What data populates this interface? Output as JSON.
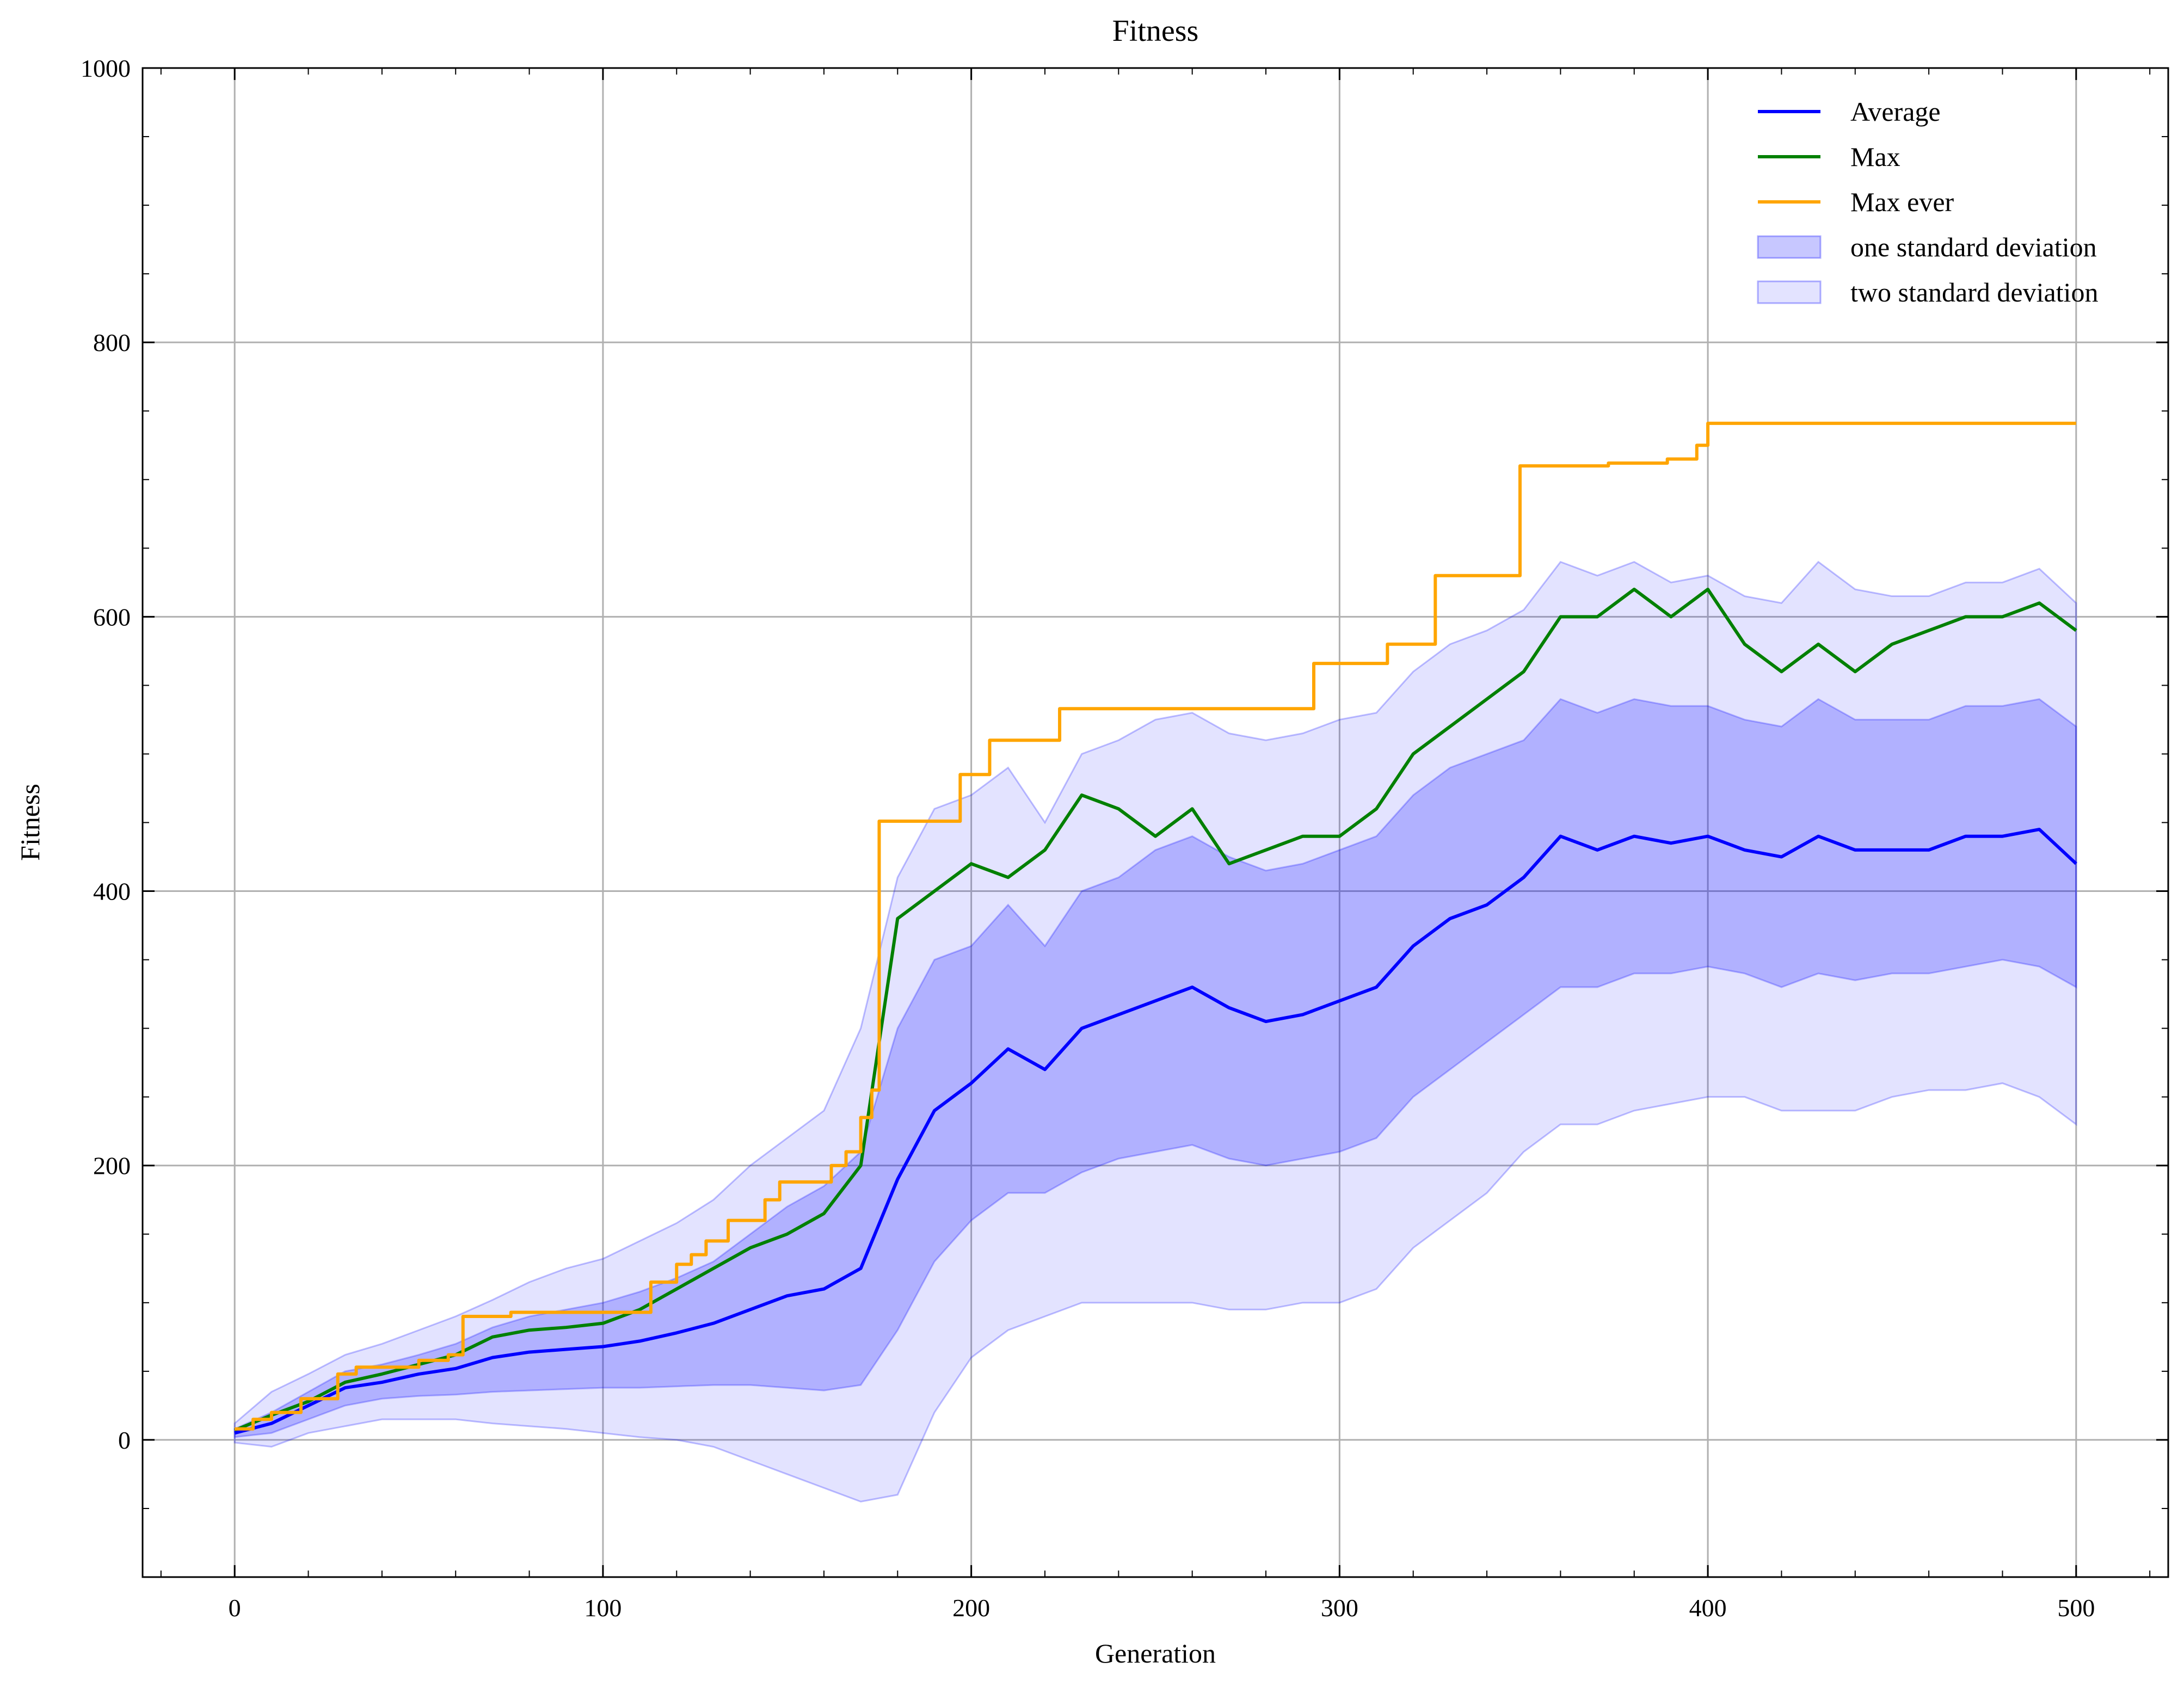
{
  "chart_data": {
    "type": "line",
    "title": "Fitness",
    "xlabel": "Generation",
    "ylabel": "Fitness",
    "xlim": [
      -25,
      525
    ],
    "ylim": [
      -100,
      1000
    ],
    "xticks": [
      0,
      100,
      200,
      300,
      400,
      500
    ],
    "yticks": [
      0,
      200,
      400,
      600,
      800,
      1000
    ],
    "grid": true,
    "legend": "top-right",
    "colors": {
      "average": "#0000ff",
      "max": "#008000",
      "max_ever": "#ffa500",
      "band_one": "#0000ff",
      "band_two": "#0000ff"
    },
    "series": [
      {
        "name": "Average",
        "kind": "line",
        "x": [
          0,
          10,
          20,
          30,
          40,
          50,
          60,
          70,
          80,
          90,
          100,
          110,
          120,
          130,
          140,
          150,
          160,
          170,
          180,
          190,
          200,
          210,
          220,
          230,
          240,
          250,
          260,
          270,
          280,
          290,
          300,
          310,
          320,
          330,
          340,
          350,
          360,
          370,
          380,
          390,
          400,
          410,
          420,
          430,
          440,
          450,
          460,
          470,
          480,
          490,
          500
        ],
        "y": [
          5,
          12,
          25,
          38,
          42,
          48,
          52,
          60,
          64,
          66,
          68,
          72,
          78,
          85,
          95,
          105,
          110,
          125,
          190,
          240,
          260,
          285,
          270,
          300,
          310,
          320,
          330,
          315,
          305,
          310,
          320,
          330,
          360,
          380,
          390,
          410,
          440,
          430,
          440,
          435,
          440,
          430,
          425,
          440,
          430,
          430,
          430,
          440,
          440,
          445,
          420
        ]
      },
      {
        "name": "Max",
        "kind": "line",
        "x": [
          0,
          10,
          20,
          30,
          40,
          50,
          60,
          70,
          80,
          90,
          100,
          110,
          120,
          130,
          140,
          150,
          160,
          170,
          180,
          190,
          200,
          210,
          220,
          230,
          240,
          250,
          260,
          270,
          280,
          290,
          300,
          310,
          320,
          330,
          340,
          350,
          360,
          370,
          380,
          390,
          400,
          410,
          420,
          430,
          440,
          450,
          460,
          470,
          480,
          490,
          500
        ],
        "y": [
          7,
          18,
          28,
          42,
          48,
          55,
          62,
          75,
          80,
          82,
          85,
          95,
          110,
          125,
          140,
          150,
          165,
          200,
          380,
          400,
          420,
          410,
          430,
          470,
          460,
          440,
          460,
          420,
          430,
          440,
          440,
          460,
          500,
          520,
          540,
          560,
          600,
          600,
          620,
          600,
          620,
          580,
          560,
          580,
          560,
          580,
          590,
          600,
          600,
          610,
          590
        ]
      },
      {
        "name": "Max ever",
        "kind": "step",
        "x": [
          0,
          5,
          10,
          18,
          28,
          33,
          50,
          58,
          62,
          75,
          113,
          120,
          124,
          128,
          134,
          144,
          148,
          162,
          166,
          170,
          173,
          175,
          197,
          205,
          224,
          293,
          313,
          326,
          349,
          373,
          389,
          397,
          400,
          500
        ],
        "y": [
          8,
          15,
          20,
          30,
          48,
          53,
          58,
          62,
          90,
          93,
          115,
          128,
          135,
          145,
          160,
          175,
          188,
          200,
          210,
          235,
          255,
          451,
          485,
          510,
          533,
          566,
          580,
          630,
          710,
          712,
          715,
          725,
          741,
          741
        ]
      },
      {
        "name": "one standard deviation",
        "kind": "band",
        "x": [
          0,
          10,
          20,
          30,
          40,
          50,
          60,
          70,
          80,
          90,
          100,
          110,
          120,
          130,
          140,
          150,
          160,
          170,
          180,
          190,
          200,
          210,
          220,
          230,
          240,
          250,
          260,
          270,
          280,
          290,
          300,
          310,
          320,
          330,
          340,
          350,
          360,
          370,
          380,
          390,
          400,
          410,
          420,
          430,
          440,
          450,
          460,
          470,
          480,
          490,
          500
        ],
        "lower": [
          2,
          5,
          15,
          25,
          30,
          32,
          33,
          35,
          36,
          37,
          38,
          38,
          39,
          40,
          40,
          38,
          36,
          40,
          80,
          130,
          160,
          180,
          180,
          195,
          205,
          210,
          215,
          205,
          200,
          205,
          210,
          220,
          250,
          270,
          290,
          310,
          330,
          330,
          340,
          340,
          345,
          340,
          330,
          340,
          335,
          340,
          340,
          345,
          350,
          345,
          330
        ],
        "upper": [
          8,
          20,
          35,
          50,
          55,
          62,
          70,
          82,
          90,
          95,
          100,
          108,
          118,
          130,
          150,
          170,
          185,
          210,
          300,
          350,
          360,
          390,
          360,
          400,
          410,
          430,
          440,
          425,
          415,
          420,
          430,
          440,
          470,
          490,
          500,
          510,
          540,
          530,
          540,
          535,
          535,
          525,
          520,
          540,
          525,
          525,
          525,
          535,
          535,
          540,
          520
        ]
      },
      {
        "name": "two standard deviation",
        "kind": "band",
        "x": [
          0,
          10,
          20,
          30,
          40,
          50,
          60,
          70,
          80,
          90,
          100,
          110,
          120,
          130,
          140,
          150,
          160,
          170,
          180,
          190,
          200,
          210,
          220,
          230,
          240,
          250,
          260,
          270,
          280,
          290,
          300,
          310,
          320,
          330,
          340,
          350,
          360,
          370,
          380,
          390,
          400,
          410,
          420,
          430,
          440,
          450,
          460,
          470,
          480,
          490,
          500
        ],
        "lower": [
          -2,
          -5,
          5,
          10,
          15,
          15,
          15,
          12,
          10,
          8,
          5,
          2,
          0,
          -5,
          -15,
          -25,
          -35,
          -45,
          -40,
          20,
          60,
          80,
          90,
          100,
          100,
          100,
          100,
          95,
          95,
          100,
          100,
          110,
          140,
          160,
          180,
          210,
          230,
          230,
          240,
          245,
          250,
          250,
          240,
          240,
          240,
          250,
          255,
          255,
          260,
          250,
          230
        ],
        "upper": [
          12,
          35,
          48,
          62,
          70,
          80,
          90,
          102,
          115,
          125,
          132,
          145,
          158,
          175,
          200,
          220,
          240,
          300,
          410,
          460,
          470,
          490,
          450,
          500,
          510,
          525,
          530,
          515,
          510,
          515,
          525,
          530,
          560,
          580,
          590,
          605,
          640,
          630,
          640,
          625,
          630,
          615,
          610,
          640,
          620,
          615,
          615,
          625,
          625,
          635,
          610
        ]
      }
    ]
  }
}
